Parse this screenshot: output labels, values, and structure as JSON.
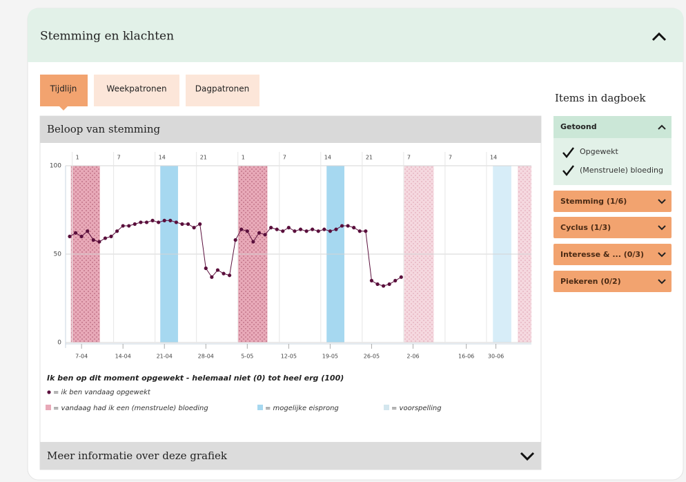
{
  "panel": {
    "title": "Stemming en klachten"
  },
  "tabs": [
    "Tijdlijn",
    "Weekpatronen",
    "Dagpatronen"
  ],
  "chart_data": {
    "type": "line",
    "title": "Beloop van stemming",
    "subtitle": "Ik ben op dit moment opgewekt - helemaal niet (0) tot heel erg (100)",
    "x": [
      0,
      1,
      2,
      3,
      4,
      5,
      6,
      7,
      8,
      9,
      10,
      11,
      12,
      13,
      14,
      15,
      16,
      17,
      18,
      19,
      20,
      21,
      22,
      23,
      24,
      25,
      26,
      27,
      28,
      29,
      30,
      31,
      32,
      33,
      34,
      35,
      36,
      37,
      38,
      39,
      40,
      41,
      42,
      43,
      44,
      45,
      46,
      47,
      48,
      49,
      50,
      51,
      52,
      53,
      54,
      55,
      56
    ],
    "series": [
      {
        "name": "= ik ben vandaag opgewekt",
        "color": "#5a0f3c",
        "values": [
          60,
          62,
          60,
          63,
          58,
          57,
          59,
          60,
          63,
          66,
          66,
          67,
          68,
          68,
          69,
          68,
          69,
          69,
          68,
          67,
          67,
          65,
          67,
          42,
          37,
          41,
          39,
          38,
          58,
          64,
          63,
          57,
          62,
          61,
          65,
          64,
          63,
          65,
          63,
          64,
          63,
          64,
          63,
          64,
          63,
          64,
          66,
          66,
          65,
          63,
          63,
          35,
          33,
          32,
          33,
          35,
          37
        ]
      }
    ],
    "xlim": [
      0,
      78
    ],
    "xticks": [
      {
        "value": 2,
        "label": "7-04"
      },
      {
        "value": 9,
        "label": "14-04"
      },
      {
        "value": 16,
        "label": "21-04"
      },
      {
        "value": 23,
        "label": "28-04"
      },
      {
        "value": 30,
        "label": "5-05"
      },
      {
        "value": 37,
        "label": "12-05"
      },
      {
        "value": 44,
        "label": "19-05"
      },
      {
        "value": 51,
        "label": "26-05"
      },
      {
        "value": 58,
        "label": "2-06"
      },
      {
        "value": 67,
        "label": "16-06"
      },
      {
        "value": 72,
        "label": "30-06"
      }
    ],
    "cycle_days": [
      {
        "value": 1,
        "label": "1"
      },
      {
        "value": 8,
        "label": "7"
      },
      {
        "value": 15,
        "label": "14"
      },
      {
        "value": 22,
        "label": "21"
      },
      {
        "value": 29,
        "label": "1"
      },
      {
        "value": 36,
        "label": "7"
      },
      {
        "value": 43,
        "label": "14"
      },
      {
        "value": 50,
        "label": "21"
      },
      {
        "value": 57,
        "label": "7"
      },
      {
        "value": 64,
        "label": "7"
      },
      {
        "value": 71,
        "label": "14"
      }
    ],
    "ylim": [
      0,
      100
    ],
    "yticks": [
      0,
      50,
      100
    ],
    "grid": true,
    "band_legend": [
      {
        "name": "= vandaag had ik een (menstruele) bloeding",
        "color": "#e8a9b8"
      },
      {
        "name": "= mogelijke eisprong",
        "color": "#a6d8f0"
      },
      {
        "name": "= voorspelling",
        "color": "#d3e6ee"
      }
    ],
    "bands": [
      {
        "legend": 0,
        "start": 0.2,
        "end": 5.1,
        "forecast": false
      },
      {
        "legend": 1,
        "start": 15.3,
        "end": 18.3,
        "forecast": false
      },
      {
        "legend": 0,
        "start": 28.4,
        "end": 33.4,
        "forecast": false
      },
      {
        "legend": 1,
        "start": 43.4,
        "end": 46.4,
        "forecast": false
      },
      {
        "legend": 0,
        "start": 56.5,
        "end": 61.5,
        "forecast": true
      },
      {
        "legend": 1,
        "start": 71.5,
        "end": 74.6,
        "forecast": true
      },
      {
        "legend": 0,
        "start": 75.7,
        "end": 78,
        "forecast": true
      }
    ]
  },
  "footer": "Meer informatie over deze grafiek",
  "sidebar": {
    "title": "Items in dagboek",
    "shown": {
      "title": "Getoond",
      "items": [
        "Opgewekt",
        "(Menstruele) bloeding"
      ]
    },
    "groups": [
      "Stemming (1/6)",
      "Cyclus (1/3)",
      "Interesse & ... (0/3)",
      "Piekeren (0/2)"
    ]
  }
}
